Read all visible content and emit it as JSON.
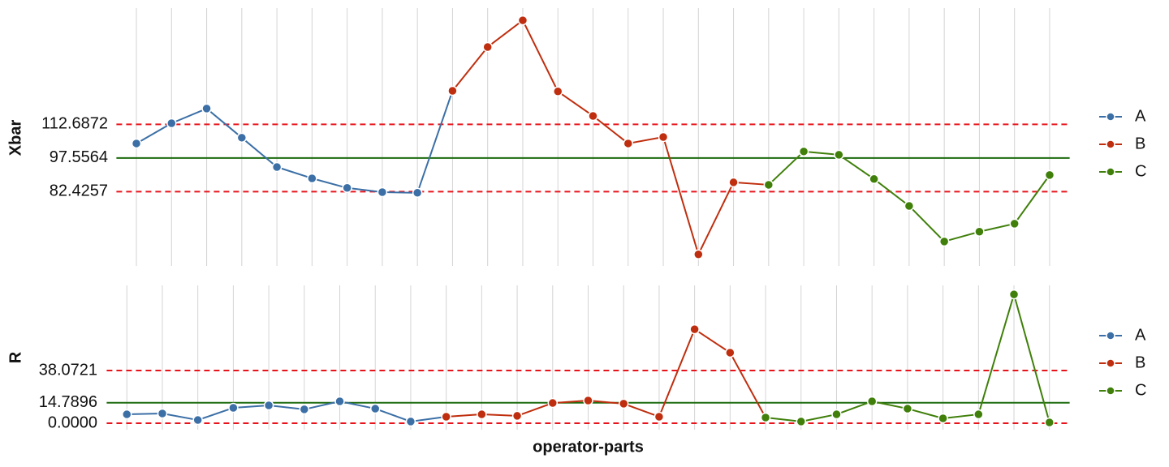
{
  "chart_data": [
    {
      "type": "line",
      "ylabel": "Xbar",
      "categories": [
        null,
        null,
        null,
        null,
        null,
        null,
        null,
        null,
        null,
        null,
        null,
        null,
        null,
        null,
        null,
        null,
        null,
        null,
        null,
        null,
        null,
        null,
        null,
        null,
        null,
        null,
        null
      ],
      "series": [
        {
          "name": "A",
          "color": "#3b6fa6",
          "values": [
            104.1,
            113.2,
            119.8,
            106.7,
            93.5,
            88.4,
            84.1,
            82.2,
            81.9,
            null,
            null,
            null,
            null,
            null,
            null,
            null,
            null,
            null,
            null,
            null,
            null,
            null,
            null,
            null,
            null,
            null,
            null
          ]
        },
        {
          "name": "B",
          "color": "#bf2e0e",
          "values": [
            null,
            null,
            null,
            null,
            null,
            null,
            null,
            null,
            null,
            127.8,
            147.5,
            159.5,
            127.5,
            116.5,
            104.1,
            107.0,
            54.2,
            86.6,
            null,
            null,
            null,
            null,
            null,
            null,
            null,
            null,
            null
          ]
        },
        {
          "name": "C",
          "color": "#3f7f0a",
          "values": [
            null,
            null,
            null,
            null,
            null,
            null,
            null,
            null,
            null,
            null,
            null,
            null,
            null,
            null,
            null,
            null,
            null,
            null,
            85.5,
            100.5,
            99.0,
            88.1,
            76.0,
            60.0,
            64.4,
            68.0,
            89.9
          ]
        }
      ],
      "ylim": [
        49,
        165
      ],
      "yticks": [
        82.4257,
        97.5564,
        112.6872
      ],
      "ytick_line_colors": [
        "#e8141c",
        "#1d6b0f",
        "#e8141c"
      ],
      "ytick_line_dashed": [
        true,
        false,
        true
      ],
      "vertical_grid": true
    },
    {
      "type": "line",
      "ylabel": "R",
      "xlabel": "operator-parts",
      "categories": [
        null,
        null,
        null,
        null,
        null,
        null,
        null,
        null,
        null,
        null,
        null,
        null,
        null,
        null,
        null,
        null,
        null,
        null,
        null,
        null,
        null,
        null,
        null,
        null,
        null,
        null,
        null
      ],
      "series": [
        {
          "name": "A",
          "color": "#3b6fa6",
          "values": [
            6.4,
            7.0,
            2.3,
            11.1,
            12.9,
            10.0,
            15.8,
            10.5,
            1.2,
            null,
            null,
            null,
            null,
            null,
            null,
            null,
            null,
            null,
            null,
            null,
            null,
            null,
            null,
            null,
            null,
            null,
            null
          ]
        },
        {
          "name": "B",
          "color": "#bf2e0e",
          "values": [
            null,
            null,
            null,
            null,
            null,
            null,
            null,
            null,
            null,
            4.7,
            6.4,
            5.3,
            14.6,
            16.4,
            14.1,
            4.7,
            67.9,
            51.0,
            null,
            null,
            null,
            null,
            null,
            null,
            null,
            null,
            null
          ]
        },
        {
          "name": "C",
          "color": "#3f7f0a",
          "values": [
            null,
            null,
            null,
            null,
            null,
            null,
            null,
            null,
            null,
            null,
            null,
            null,
            null,
            null,
            null,
            null,
            null,
            null,
            4.1,
            1.2,
            6.4,
            15.8,
            10.5,
            3.5,
            6.4,
            93.1,
            0.6
          ]
        }
      ],
      "ylim": [
        -4.7,
        99.6
      ],
      "yticks": [
        {
          "value": 0,
          "label": "0.0000"
        },
        14.7896,
        38.0721
      ],
      "ytick_line_colors": [
        "#e8141c",
        "#1d6b0f",
        "#e8141c"
      ],
      "ytick_line_dashed": [
        true,
        false,
        true
      ],
      "vertical_grid": true
    }
  ]
}
